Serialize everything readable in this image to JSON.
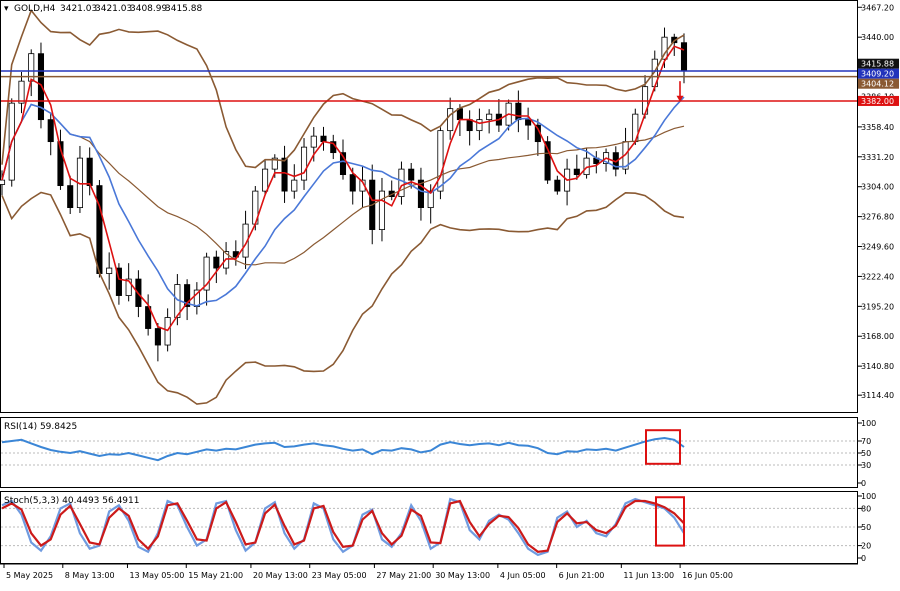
{
  "chart_data": [
    {
      "type": "candlestick",
      "panel": "main",
      "title": "GOLD,H4",
      "ohlc": {
        "open": "3421.03",
        "high": "3421.03",
        "low": "3408.99",
        "close": "3415.88"
      },
      "ylim": [
        3100,
        3472
      ],
      "y_ticks": [
        "3467.20",
        "3440.00",
        "3413.10",
        "3386.10",
        "3358.40",
        "3331.20",
        "3304.00",
        "3276.80",
        "3249.60",
        "3222.40",
        "3195.20",
        "3168.00",
        "3140.80",
        "3114.40"
      ],
      "y_tick_values": [
        3467.2,
        3440.0,
        3413.1,
        3386.1,
        3358.4,
        3331.2,
        3304.0,
        3276.8,
        3249.6,
        3222.4,
        3195.2,
        3168.0,
        3140.8,
        3114.4
      ],
      "price_tags": [
        {
          "label": "3415.88",
          "value": 3415.88,
          "color": "#111111"
        },
        {
          "label": "3409.20",
          "value": 3409.2,
          "color": "#2233bb"
        },
        {
          "label": "3404.12",
          "value": 3404.12,
          "color": "#8a5a33"
        },
        {
          "label": "3382.00",
          "value": 3382.0,
          "color": "#dd1111"
        }
      ],
      "horizontal_lines": [
        {
          "value": 3409.2,
          "color": "#2233bb"
        },
        {
          "value": 3404.12,
          "color": "#8a5a33"
        },
        {
          "value": 3382.0,
          "color": "#dd1111"
        }
      ],
      "close_path": [
        3310,
        3380,
        3400,
        3425,
        3365,
        3345,
        3305,
        3285,
        3330,
        3305,
        3225,
        3230,
        3205,
        3220,
        3195,
        3175,
        3160,
        3185,
        3215,
        3195,
        3210,
        3240,
        3230,
        3245,
        3240,
        3270,
        3300,
        3320,
        3330,
        3300,
        3310,
        3340,
        3350,
        3345,
        3335,
        3315,
        3300,
        3310,
        3265,
        3300,
        3295,
        3320,
        3310,
        3285,
        3300,
        3355,
        3375,
        3365,
        3355,
        3365,
        3370,
        3360,
        3380,
        3365,
        3360,
        3345,
        3310,
        3300,
        3320,
        3315,
        3330,
        3325,
        3335,
        3320,
        3345,
        3370,
        3395,
        3420,
        3440,
        3435,
        3410
      ],
      "series": [
        {
          "name": "",
          "color": "#dd1111",
          "smoothing": 3
        },
        {
          "name": "",
          "color": "#4a78d8",
          "smoothing": 9
        },
        {
          "name": "",
          "color": "#8a5a33",
          "smoothing": 20,
          "role": "bollinger"
        }
      ],
      "annotation": {
        "type": "down-arrow",
        "color": "#dd1111"
      }
    },
    {
      "type": "line",
      "panel": "rsi",
      "title": "RSI(14) 59.8425",
      "ylim": [
        0,
        100
      ],
      "y_ticks": [
        "100",
        "70",
        "50",
        "30",
        "0"
      ],
      "y_tick_values": [
        100,
        70,
        50,
        30,
        0
      ],
      "levels": [
        70,
        50,
        30
      ],
      "values": [
        68,
        70,
        72,
        66,
        60,
        55,
        52,
        50,
        53,
        49,
        45,
        48,
        47,
        50,
        46,
        42,
        38,
        45,
        50,
        48,
        52,
        56,
        54,
        57,
        56,
        60,
        64,
        66,
        67,
        60,
        61,
        64,
        66,
        63,
        61,
        57,
        54,
        56,
        48,
        55,
        54,
        58,
        56,
        51,
        54,
        64,
        68,
        65,
        63,
        65,
        66,
        63,
        67,
        63,
        62,
        58,
        50,
        48,
        53,
        52,
        56,
        55,
        57,
        54,
        59,
        64,
        69,
        73,
        75,
        72,
        60
      ],
      "color": "#3b86d6",
      "highlight_box": {
        "color": "#dd1111"
      }
    },
    {
      "type": "line",
      "panel": "stochastic",
      "title": "Stoch(5,3,3) 40.4493 56.4911",
      "ylim": [
        0,
        100
      ],
      "y_ticks": [
        "100",
        "80",
        "50",
        "20",
        "0"
      ],
      "y_tick_values": [
        100,
        80,
        50,
        20,
        0
      ],
      "levels": [
        80,
        50,
        20
      ],
      "series": [
        {
          "name": "",
          "color": "#6f9be0",
          "values": [
            85,
            92,
            70,
            25,
            12,
            35,
            80,
            88,
            40,
            15,
            20,
            75,
            85,
            60,
            18,
            10,
            40,
            92,
            85,
            50,
            20,
            30,
            88,
            92,
            45,
            12,
            25,
            80,
            90,
            40,
            15,
            30,
            88,
            80,
            30,
            10,
            20,
            70,
            78,
            30,
            18,
            40,
            85,
            60,
            15,
            25,
            95,
            90,
            45,
            30,
            60,
            70,
            62,
            40,
            15,
            5,
            10,
            65,
            75,
            50,
            60,
            40,
            35,
            55,
            88,
            95,
            90,
            85,
            80,
            65,
            40
          ]
        },
        {
          "name": "",
          "color": "#cc1a1a",
          "values": [
            80,
            88,
            78,
            40,
            20,
            30,
            70,
            84,
            55,
            25,
            22,
            65,
            80,
            68,
            30,
            15,
            35,
            85,
            88,
            60,
            30,
            28,
            80,
            90,
            58,
            22,
            25,
            72,
            86,
            52,
            22,
            28,
            80,
            84,
            42,
            18,
            20,
            62,
            76,
            40,
            22,
            36,
            78,
            68,
            25,
            24,
            88,
            92,
            58,
            35,
            55,
            68,
            66,
            48,
            22,
            10,
            12,
            58,
            72,
            56,
            58,
            45,
            40,
            52,
            82,
            92,
            92,
            88,
            82,
            72,
            56
          ]
        }
      ],
      "highlight_box": {
        "color": "#dd1111"
      }
    }
  ],
  "x_axis": {
    "ticks": [
      "5 May 2025",
      "8 May 13:00",
      "13 May 05:00",
      "15 May 21:00",
      "20 May 13:00",
      "23 May 05:00",
      "27 May 21:00",
      "30 May 13:00",
      "4 Jun 05:00",
      "6 Jun 21:00",
      "11 Jun 13:00",
      "16 Jun 05:00"
    ],
    "tick_positions": [
      0,
      10,
      21,
      31,
      42,
      52,
      63,
      73,
      84,
      94,
      105,
      115
    ]
  }
}
